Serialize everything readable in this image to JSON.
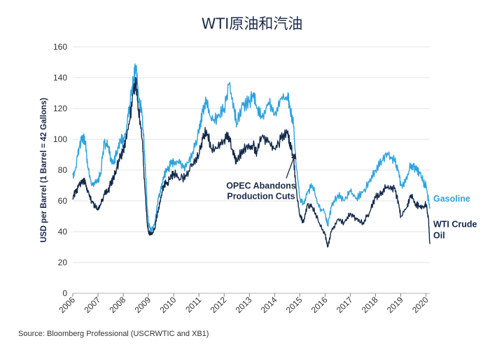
{
  "chart_data": {
    "type": "line",
    "title": "WTI原油和汽油",
    "ylabel": "USD per Barrel (1 Barrel = 42 Gallons)",
    "xlabel": "",
    "ylim": [
      0,
      160
    ],
    "yticks": [
      0,
      20,
      40,
      60,
      80,
      100,
      120,
      140,
      160
    ],
    "xticks": [
      "2006",
      "2007",
      "2008",
      "2009",
      "2010",
      "2011",
      "2012",
      "2013",
      "2014",
      "2015",
      "2016",
      "2017",
      "2018",
      "2019",
      "2020"
    ],
    "grid": "horizontal",
    "legend": "right-end labels",
    "colors": {
      "gasoline": "#2ea3dc",
      "wti": "#13294b"
    },
    "series": [
      {
        "name": "Gasoline",
        "x": [
          2006.0,
          2006.1,
          2006.25,
          2006.4,
          2006.5,
          2006.6,
          2006.75,
          2006.9,
          2007.0,
          2007.1,
          2007.25,
          2007.4,
          2007.5,
          2007.6,
          2007.75,
          2007.9,
          2008.0,
          2008.1,
          2008.25,
          2008.4,
          2008.5,
          2008.6,
          2008.75,
          2008.85,
          2008.95,
          2009.0,
          2009.1,
          2009.25,
          2009.4,
          2009.5,
          2009.6,
          2009.75,
          2009.9,
          2010.0,
          2010.25,
          2010.5,
          2010.75,
          2011.0,
          2011.15,
          2011.3,
          2011.5,
          2011.75,
          2012.0,
          2012.2,
          2012.4,
          2012.5,
          2012.75,
          2013.0,
          2013.15,
          2013.3,
          2013.5,
          2013.75,
          2014.0,
          2014.25,
          2014.5,
          2014.6,
          2014.75,
          2014.85,
          2015.0,
          2015.15,
          2015.3,
          2015.5,
          2015.75,
          2016.0,
          2016.1,
          2016.25,
          2016.5,
          2016.75,
          2017.0,
          2017.25,
          2017.5,
          2017.75,
          2018.0,
          2018.25,
          2018.5,
          2018.75,
          2018.9,
          2019.0,
          2019.25,
          2019.4,
          2019.6,
          2019.75,
          2019.9,
          2020.0,
          2020.1,
          2020.15
        ],
        "values": [
          77,
          80,
          95,
          102,
          98,
          82,
          70,
          72,
          74,
          78,
          98,
          96,
          88,
          84,
          92,
          100,
          98,
          104,
          122,
          138,
          148,
          130,
          115,
          90,
          55,
          46,
          40,
          46,
          62,
          68,
          76,
          80,
          84,
          86,
          84,
          82,
          92,
          104,
          118,
          126,
          112,
          114,
          120,
          136,
          118,
          110,
          122,
          124,
          130,
          120,
          114,
          124,
          116,
          126,
          128,
          122,
          108,
          84,
          62,
          58,
          66,
          70,
          56,
          52,
          44,
          56,
          64,
          60,
          66,
          62,
          66,
          72,
          80,
          86,
          90,
          86,
          80,
          70,
          74,
          84,
          80,
          78,
          72,
          70,
          60,
          55
        ]
      },
      {
        "name": "WTI Crude Oil",
        "x": [
          2006.0,
          2006.1,
          2006.25,
          2006.4,
          2006.5,
          2006.6,
          2006.75,
          2006.9,
          2007.0,
          2007.1,
          2007.25,
          2007.4,
          2007.5,
          2007.6,
          2007.75,
          2007.9,
          2008.0,
          2008.1,
          2008.25,
          2008.4,
          2008.5,
          2008.6,
          2008.75,
          2008.85,
          2008.95,
          2009.0,
          2009.1,
          2009.25,
          2009.4,
          2009.5,
          2009.6,
          2009.75,
          2009.9,
          2010.0,
          2010.25,
          2010.5,
          2010.75,
          2011.0,
          2011.15,
          2011.3,
          2011.5,
          2011.75,
          2012.0,
          2012.2,
          2012.4,
          2012.5,
          2012.75,
          2013.0,
          2013.15,
          2013.3,
          2013.5,
          2013.75,
          2014.0,
          2014.25,
          2014.5,
          2014.6,
          2014.75,
          2014.85,
          2015.0,
          2015.15,
          2015.3,
          2015.5,
          2015.75,
          2016.0,
          2016.1,
          2016.25,
          2016.5,
          2016.75,
          2017.0,
          2017.25,
          2017.5,
          2017.75,
          2018.0,
          2018.25,
          2018.5,
          2018.75,
          2018.9,
          2019.0,
          2019.25,
          2019.4,
          2019.6,
          2019.75,
          2019.9,
          2020.0,
          2020.1,
          2020.15
        ],
        "values": [
          62,
          66,
          70,
          74,
          72,
          66,
          60,
          56,
          54,
          58,
          64,
          66,
          72,
          74,
          82,
          90,
          92,
          100,
          112,
          130,
          138,
          120,
          100,
          70,
          46,
          40,
          38,
          42,
          56,
          62,
          70,
          72,
          76,
          78,
          74,
          76,
          84,
          90,
          100,
          106,
          94,
          94,
          100,
          102,
          88,
          86,
          94,
          94,
          96,
          92,
          102,
          98,
          94,
          100,
          104,
          98,
          88,
          68,
          50,
          46,
          58,
          56,
          46,
          38,
          30,
          40,
          48,
          46,
          52,
          48,
          46,
          52,
          62,
          66,
          70,
          68,
          60,
          50,
          56,
          64,
          58,
          56,
          56,
          58,
          48,
          32
        ]
      }
    ],
    "annotations": [
      {
        "text_lines": [
          "OPEC Abandons",
          "Production Cuts"
        ],
        "x": 2014.85,
        "y": 92
      }
    ]
  },
  "source": "Source: Bloomberg Professional (USCRWTIC and XB1)"
}
